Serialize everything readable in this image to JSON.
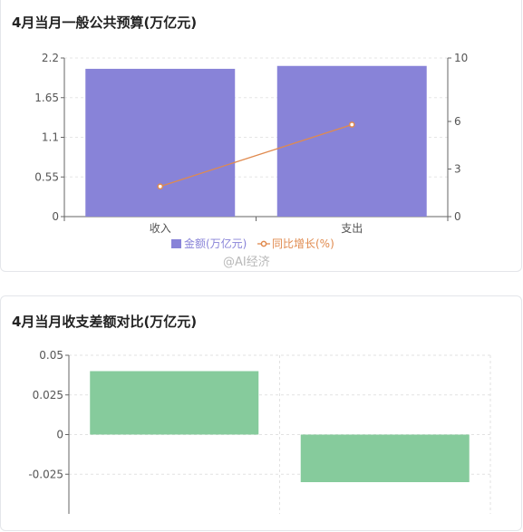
{
  "chart1": {
    "title": "4月当月一般公共预算(万亿元)",
    "chart_data": {
      "type": "bar+line",
      "categories": [
        "收入",
        "支出"
      ],
      "series": [
        {
          "name": "金额(万亿元)",
          "type": "bar",
          "axis": "left",
          "values": [
            2.05,
            2.09
          ],
          "color": "#8883d8"
        },
        {
          "name": "同比增长(%)",
          "type": "line",
          "axis": "right",
          "values": [
            1.9,
            5.8
          ],
          "color": "#e08a4e"
        }
      ],
      "yleft": {
        "range": [
          0,
          2.2
        ],
        "ticks": [
          "0",
          "0.55",
          "1.1",
          "1.65",
          "2.2"
        ]
      },
      "yright": {
        "range": [
          0,
          10
        ],
        "ticks": [
          "0",
          "3",
          "6",
          "10"
        ]
      },
      "legend_placement": "bottom-center",
      "grid": true
    }
  },
  "chart2": {
    "title": "4月当月收支差额对比(万亿元)",
    "chart_data": {
      "type": "bar",
      "categories": [
        "",
        ""
      ],
      "values": [
        0.04,
        -0.03
      ],
      "color": "#86cb9c",
      "ylim": [
        -0.05,
        0.05
      ],
      "ticks": [
        "-0.025",
        "0",
        "0.025",
        "0.05"
      ],
      "grid": true
    }
  },
  "watermark": "@AI经济"
}
